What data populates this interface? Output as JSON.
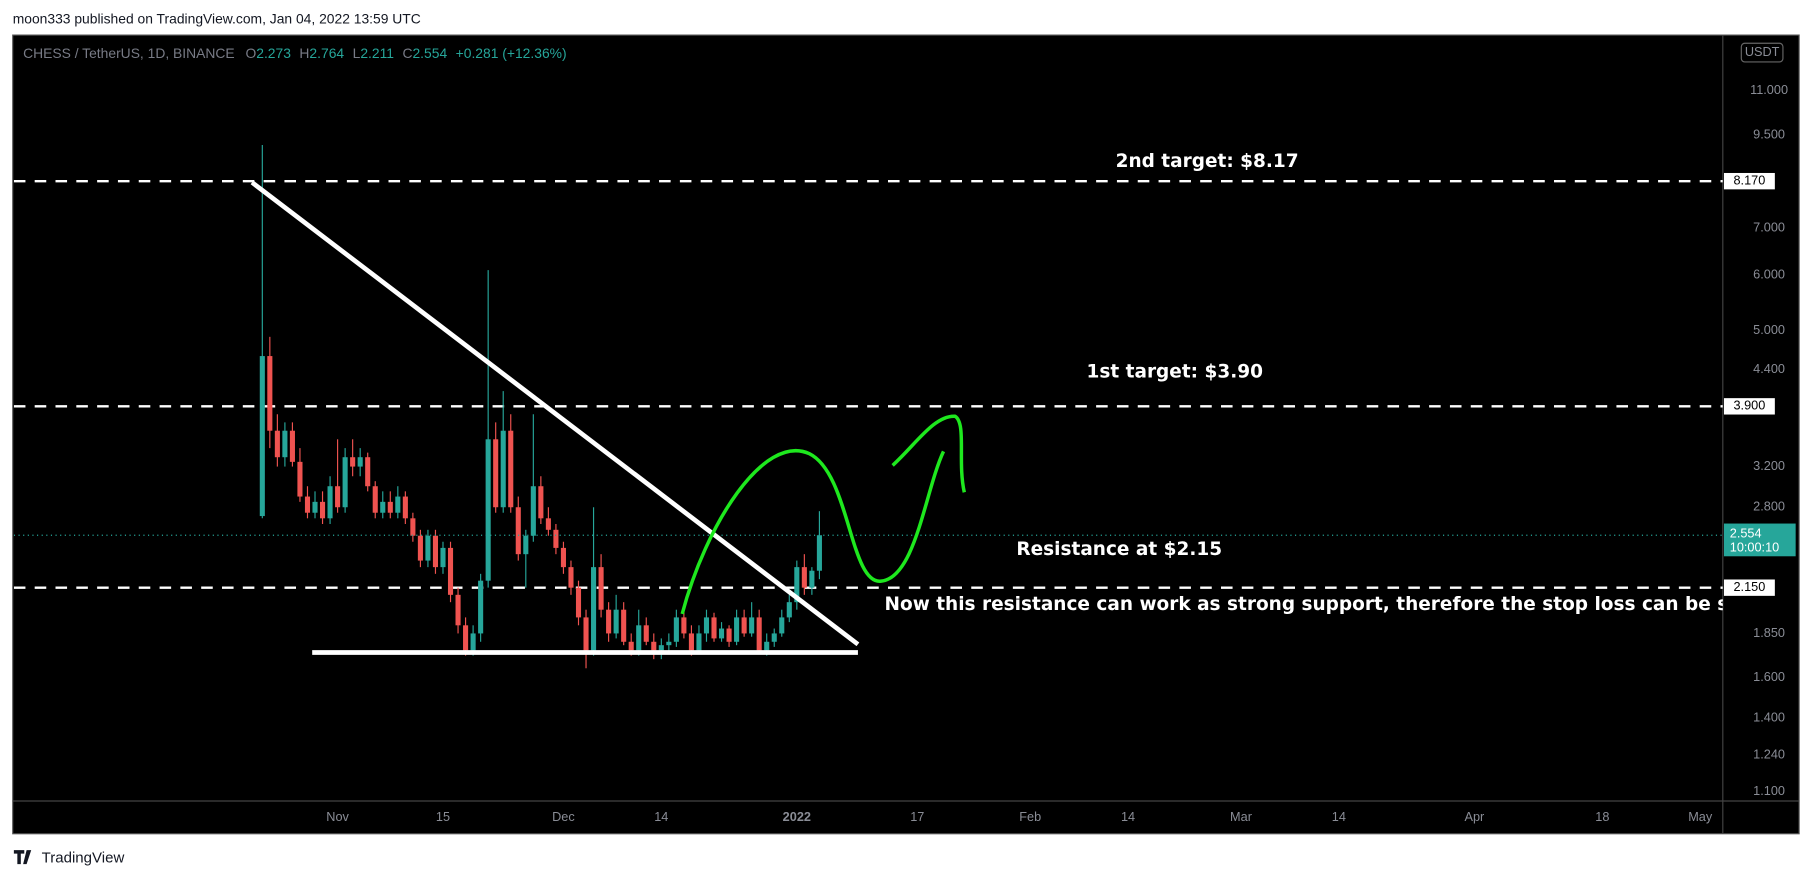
{
  "header": "moon333 published on TradingView.com, Jan 04, 2022 13:59 UTC",
  "footer": "TradingView",
  "chart_data": {
    "type": "candlestick",
    "symbol": "CHESS / TetherUS, 1D, BINANCE",
    "legend_labels": [
      "O",
      "H",
      "L",
      "C"
    ],
    "change_label": "+0.281 (+12.36%)",
    "currency": "USDT",
    "countdown": "10:00:10",
    "log_scale": true,
    "grid": false,
    "up_color": "#26a69a",
    "down_color": "#ef5350",
    "ylim": [
      1.067,
      13.2
    ],
    "yticks": [
      {
        "value": 1.1,
        "label": "1.100"
      },
      {
        "value": 1.24,
        "label": "1.240"
      },
      {
        "value": 1.4,
        "label": "1.400"
      },
      {
        "value": 1.6,
        "label": "1.600"
      },
      {
        "value": 1.85,
        "label": "1.850"
      },
      {
        "value": 2.8,
        "label": "2.800"
      },
      {
        "value": 3.2,
        "label": "3.200"
      },
      {
        "value": 4.4,
        "label": "4.400"
      },
      {
        "value": 5,
        "label": "5.000"
      },
      {
        "value": 6,
        "label": "6.000"
      },
      {
        "value": 7,
        "label": "7.000"
      },
      {
        "value": 9.5,
        "label": "9.500"
      },
      {
        "value": 11,
        "label": "11.000"
      }
    ],
    "xlim": [
      "2021-09-19",
      "2022-05-04"
    ],
    "xticks": [
      {
        "value": "2021-11-01",
        "label": "Nov"
      },
      {
        "value": "2021-11-15",
        "label": "15"
      },
      {
        "value": "2021-12-01",
        "label": "Dec"
      },
      {
        "value": "2021-12-14",
        "label": "14"
      },
      {
        "value": "2022-01-01",
        "label": "2022"
      },
      {
        "value": "2022-01-17",
        "label": "17"
      },
      {
        "value": "2022-02-01",
        "label": "Feb"
      },
      {
        "value": "2022-02-14",
        "label": "14"
      },
      {
        "value": "2022-03-01",
        "label": "Mar"
      },
      {
        "value": "2022-03-14",
        "label": "14"
      },
      {
        "value": "2022-04-01",
        "label": "Apr"
      },
      {
        "value": "2022-04-18",
        "label": "18"
      },
      {
        "value": "2022-05-01",
        "label": "May"
      }
    ],
    "levels": {
      "values": [
        8.17,
        3.9,
        2.15
      ],
      "value_labels": [
        "8.170",
        "3.900",
        "2.150"
      ]
    },
    "annotations": [
      "2nd target: $8.17",
      "1st target: $3.90",
      "Resistance at $2.15",
      "Now this resistance can work as strong support, therefore the stop loss can be set below"
    ],
    "series": [
      {
        "x": [
          "2021-10-22",
          "2021-10-23",
          "2021-10-24",
          "2021-10-25",
          "2021-10-26",
          "2021-10-27",
          "2021-10-28",
          "2021-10-29",
          "2021-10-30",
          "2021-10-31",
          "2021-11-01",
          "2021-11-02",
          "2021-11-03",
          "2021-11-04",
          "2021-11-05",
          "2021-11-06",
          "2021-11-07",
          "2021-11-08",
          "2021-11-09",
          "2021-11-10",
          "2021-11-11",
          "2021-11-12",
          "2021-11-13",
          "2021-11-14",
          "2021-11-15",
          "2021-11-16",
          "2021-11-17",
          "2021-11-18",
          "2021-11-19",
          "2021-11-20",
          "2021-11-21",
          "2021-11-22",
          "2021-11-23",
          "2021-11-24",
          "2021-11-25",
          "2021-11-26",
          "2021-11-27",
          "2021-11-28",
          "2021-11-29",
          "2021-11-30",
          "2021-12-01",
          "2021-12-02",
          "2021-12-03",
          "2021-12-04",
          "2021-12-05",
          "2021-12-06",
          "2021-12-07",
          "2021-12-08",
          "2021-12-09",
          "2021-12-10",
          "2021-12-11",
          "2021-12-12",
          "2021-12-13",
          "2021-12-14",
          "2021-12-15",
          "2021-12-16",
          "2021-12-17",
          "2021-12-18",
          "2021-12-19",
          "2021-12-20",
          "2021-12-21",
          "2021-12-22",
          "2021-12-23",
          "2021-12-24",
          "2021-12-25",
          "2021-12-26",
          "2021-12-27",
          "2021-12-28",
          "2021-12-29",
          "2021-12-30",
          "2021-12-31",
          "2022-01-01",
          "2022-01-02",
          "2022-01-03",
          "2022-01-04"
        ],
        "open": [
          2.72,
          4.6,
          3.6,
          3.3,
          3.6,
          3.25,
          2.9,
          2.75,
          2.85,
          2.7,
          3.0,
          2.8,
          3.3,
          3.2,
          3.3,
          3.0,
          2.75,
          2.85,
          2.75,
          2.9,
          2.7,
          2.55,
          2.35,
          2.55,
          2.3,
          2.45,
          2.1,
          1.9,
          1.75,
          1.85,
          2.2,
          3.5,
          2.8,
          3.6,
          2.8,
          2.4,
          2.55,
          3.0,
          2.7,
          2.6,
          2.45,
          2.3,
          2.15,
          1.95,
          1.75,
          2.3,
          2.0,
          1.85,
          2.0,
          1.8,
          1.75,
          1.9,
          1.8,
          1.75,
          1.78,
          1.8,
          1.95,
          1.85,
          1.75,
          1.85,
          1.95,
          1.82,
          1.88,
          1.8,
          1.95,
          1.85,
          1.95,
          1.75,
          1.8,
          1.85,
          1.95,
          2.05,
          2.3,
          2.15,
          2.273
        ],
        "high": [
          9.2,
          4.9,
          3.8,
          3.7,
          3.7,
          3.4,
          3.0,
          2.95,
          2.95,
          3.1,
          3.5,
          3.4,
          3.5,
          3.4,
          3.35,
          3.05,
          2.95,
          2.95,
          3.0,
          2.95,
          2.75,
          2.6,
          2.6,
          2.6,
          2.5,
          2.5,
          2.15,
          1.95,
          1.9,
          2.25,
          6.1,
          3.7,
          4.1,
          3.8,
          2.9,
          2.6,
          3.8,
          3.1,
          2.8,
          2.65,
          2.5,
          2.35,
          2.2,
          2.0,
          2.8,
          2.4,
          2.05,
          2.1,
          2.05,
          1.85,
          2.0,
          1.95,
          1.85,
          1.82,
          1.85,
          2.0,
          2.0,
          1.9,
          1.9,
          2.0,
          1.98,
          1.92,
          1.9,
          2.0,
          2.0,
          2.05,
          2.0,
          1.85,
          1.88,
          2.0,
          2.1,
          2.35,
          2.4,
          2.3,
          2.764
        ],
        "low": [
          2.7,
          3.4,
          3.2,
          3.2,
          3.2,
          2.85,
          2.7,
          2.7,
          2.65,
          2.65,
          2.75,
          2.75,
          3.1,
          3.1,
          2.95,
          2.7,
          2.7,
          2.7,
          2.7,
          2.65,
          2.5,
          2.3,
          2.3,
          2.25,
          2.25,
          2.05,
          1.85,
          1.72,
          1.72,
          1.8,
          2.15,
          2.75,
          2.75,
          2.75,
          2.35,
          2.15,
          2.5,
          2.65,
          2.55,
          2.4,
          2.25,
          2.1,
          1.9,
          1.65,
          1.72,
          1.95,
          1.8,
          1.82,
          1.78,
          1.72,
          1.72,
          1.78,
          1.7,
          1.7,
          1.74,
          1.77,
          1.82,
          1.72,
          1.73,
          1.8,
          1.8,
          1.8,
          1.77,
          1.78,
          1.83,
          1.83,
          1.73,
          1.72,
          1.77,
          1.83,
          1.92,
          2.0,
          2.1,
          2.1,
          2.211
        ],
        "close": [
          4.6,
          3.6,
          3.3,
          3.6,
          3.25,
          2.9,
          2.75,
          2.85,
          2.7,
          3.0,
          2.8,
          3.3,
          3.2,
          3.3,
          3.0,
          2.75,
          2.85,
          2.75,
          2.9,
          2.7,
          2.55,
          2.35,
          2.55,
          2.3,
          2.45,
          2.1,
          1.9,
          1.75,
          1.85,
          2.2,
          3.5,
          2.8,
          3.6,
          2.8,
          2.4,
          2.55,
          3.0,
          2.7,
          2.6,
          2.45,
          2.3,
          2.15,
          1.95,
          1.75,
          2.3,
          2.0,
          1.85,
          2.0,
          1.8,
          1.75,
          1.9,
          1.8,
          1.75,
          1.78,
          1.8,
          1.95,
          1.85,
          1.75,
          1.85,
          1.95,
          1.82,
          1.88,
          1.8,
          1.95,
          1.85,
          1.95,
          1.75,
          1.8,
          1.85,
          1.95,
          2.05,
          2.3,
          2.15,
          2.273,
          2.554
        ]
      }
    ]
  }
}
